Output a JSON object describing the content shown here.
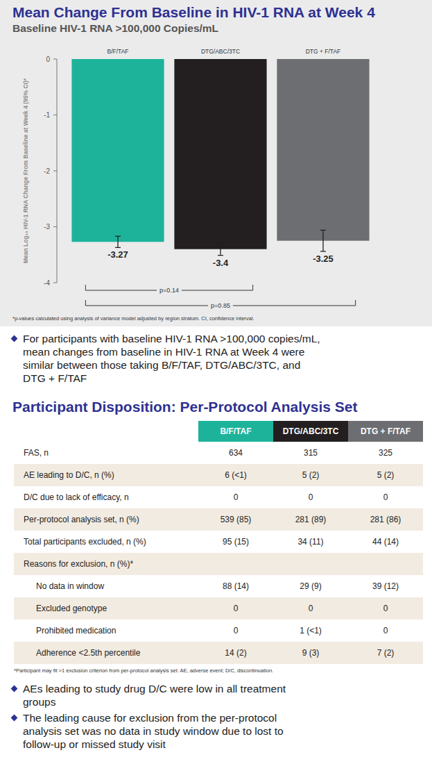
{
  "chart_data": {
    "type": "bar",
    "title": "Mean Change From Baseline in HIV-1 RNA at Week 4",
    "subtitle": "Baseline HIV-1 RNA >100,000 Copies/mL",
    "y_label": "Mean Log₁₀ HIV-1 RNA Change From Baseline at Week 4 (95% CI)*",
    "categories": [
      "B/F/TAF",
      "DTG/ABC/3TC",
      "DTG + F/TAF"
    ],
    "values": [
      -3.27,
      -3.4,
      -3.25
    ],
    "errors": [
      0.1,
      0.11,
      0.19
    ],
    "colors": [
      "#1db39b",
      "#231f20",
      "#6d6e71"
    ],
    "ylim": [
      -4,
      0
    ],
    "yticks": [
      -4,
      -3,
      -2,
      -1,
      0
    ],
    "grid": false,
    "data_labels": true,
    "comparisons": [
      {
        "label": "p=0.14",
        "pair": [
          "B/F/TAF",
          "DTG/ABC/3TC"
        ]
      },
      {
        "label": "p=0.85",
        "pair": [
          "B/F/TAF",
          "DTG + F/TAF"
        ]
      }
    ],
    "footnote": "*p-values calculated using analysis of variance model adjusted by region stratum. CI, confidence interval."
  },
  "chart_notes": [
    "For participants with baseline HIV-1 RNA >100,000 copies/mL, mean changes from baseline in HIV-1 RNA at Week 4 were similar between those taking B/F/TAF, DTG/ABC/3TC, and DTG + F/TAF"
  ],
  "table_section": {
    "title": "Participant Disposition: Per-Protocol Analysis Set",
    "columns": [
      "B/F/TAF",
      "DTG/ABC/3TC",
      "DTG + F/TAF"
    ],
    "rows": [
      {
        "label": "FAS, n",
        "values": [
          "634",
          "315",
          "325"
        ]
      },
      {
        "label": "AE leading to D/C, n (%)",
        "values": [
          "6 (<1)",
          "5 (2)",
          "5 (2)"
        ]
      },
      {
        "label": "D/C due to lack of efficacy, n",
        "values": [
          "0",
          "0",
          "0"
        ]
      },
      {
        "label": "Per-protocol analysis set, n (%)",
        "values": [
          "539 (85)",
          "281 (89)",
          "281 (86)"
        ]
      },
      {
        "label": "Total participants excluded, n (%)",
        "values": [
          "95 (15)",
          "34 (11)",
          "44 (14)"
        ]
      },
      {
        "label": "Reasons for exclusion, n (%)*",
        "subrows": [
          {
            "label": "No data in window",
            "values": [
              "88 (14)",
              "29 (9)",
              "39 (12)"
            ]
          },
          {
            "label": "Excluded genotype",
            "values": [
              "0",
              "0",
              "0"
            ]
          },
          {
            "label": "Prohibited medication",
            "values": [
              "0",
              "1 (<1)",
              "0"
            ]
          },
          {
            "label": "Adherence <2.5th percentile",
            "values": [
              "14 (2)",
              "9 (3)",
              "7 (2)"
            ]
          }
        ]
      }
    ],
    "footnote": "*Participant may fit >1 exclusion criterion from per-protocol analysis set. AE, adverse event; D/C, discontinuation.",
    "notes": [
      "AEs leading to study drug D/C were low in all treatment groups",
      "The leading cause for exclusion from the per-protocol analysis set was no data in study window due to lost to follow-up or missed study visit"
    ]
  }
}
